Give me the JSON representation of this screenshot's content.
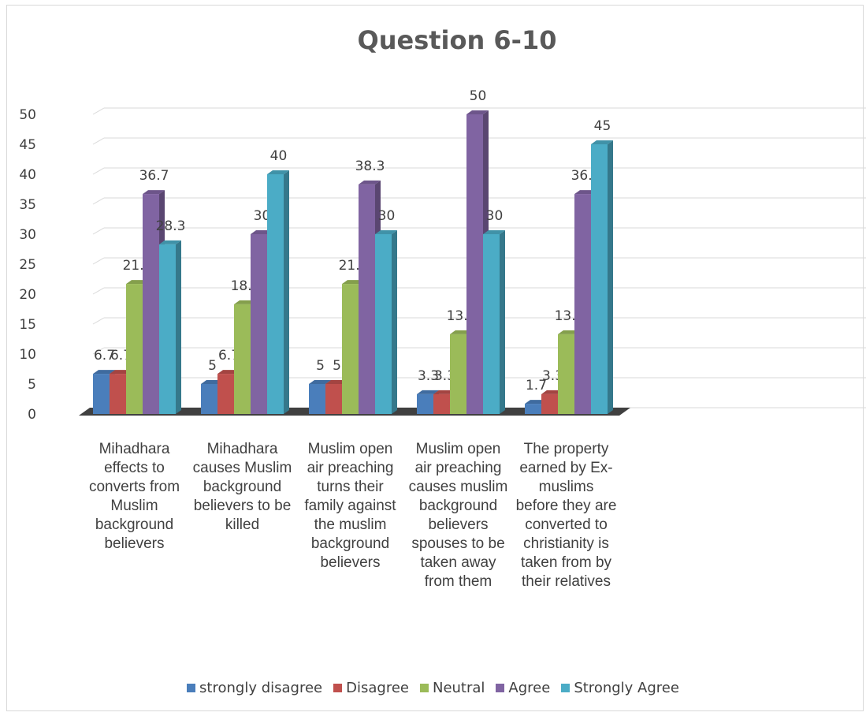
{
  "chart_data": {
    "type": "bar",
    "title": "Question 6-10",
    "categories": [
      "Mihadhara effects to converts from Muslim background believers",
      "Mihadhara causes Muslim background believers to be killed",
      "Muslim open air preaching turns their family against the muslim background believers",
      "Muslim open air preaching causes muslim background believers spouses to be taken away from them",
      "The property earned by Ex-muslims before they are converted to christianity is taken from by their relatives"
    ],
    "series": [
      {
        "name": "strongly disagree",
        "values": [
          6.7,
          5,
          5,
          3.3,
          1.7
        ],
        "labels": [
          "6.7",
          "5",
          "5",
          "3.3",
          "1.7"
        ]
      },
      {
        "name": "Disagree",
        "values": [
          6.7,
          6.7,
          5,
          3.3,
          3.3
        ],
        "labels": [
          "6.7",
          "6.7",
          "5",
          "3.3",
          "3.3"
        ]
      },
      {
        "name": "Neutral",
        "values": [
          21.7,
          18.3,
          21.7,
          13.3,
          13.3
        ],
        "labels": [
          "21.7",
          "18.3",
          "21.7",
          "13.3",
          "13.3"
        ]
      },
      {
        "name": "Agree",
        "values": [
          36.7,
          30,
          38.3,
          50,
          36.7
        ],
        "labels": [
          "36.7",
          "30",
          "38.3",
          "50",
          "36.7"
        ]
      },
      {
        "name": "Strongly Agree",
        "values": [
          28.3,
          40,
          30,
          30,
          45
        ],
        "labels": [
          "28.3",
          "40",
          "30",
          "30",
          "45"
        ]
      }
    ],
    "yticks": [
      "0",
      "5",
      "10",
      "15",
      "20",
      "25",
      "30",
      "35",
      "40",
      "45",
      "50"
    ],
    "ylim": [
      0,
      50
    ],
    "grid": true,
    "legend": "bottom",
    "colors": {
      "strongly disagree": "#4a7ebb",
      "Disagree": "#c0504d",
      "Neutral": "#9bbb59",
      "Agree": "#8064a2",
      "Strongly Agree": "#4bacc6"
    }
  }
}
